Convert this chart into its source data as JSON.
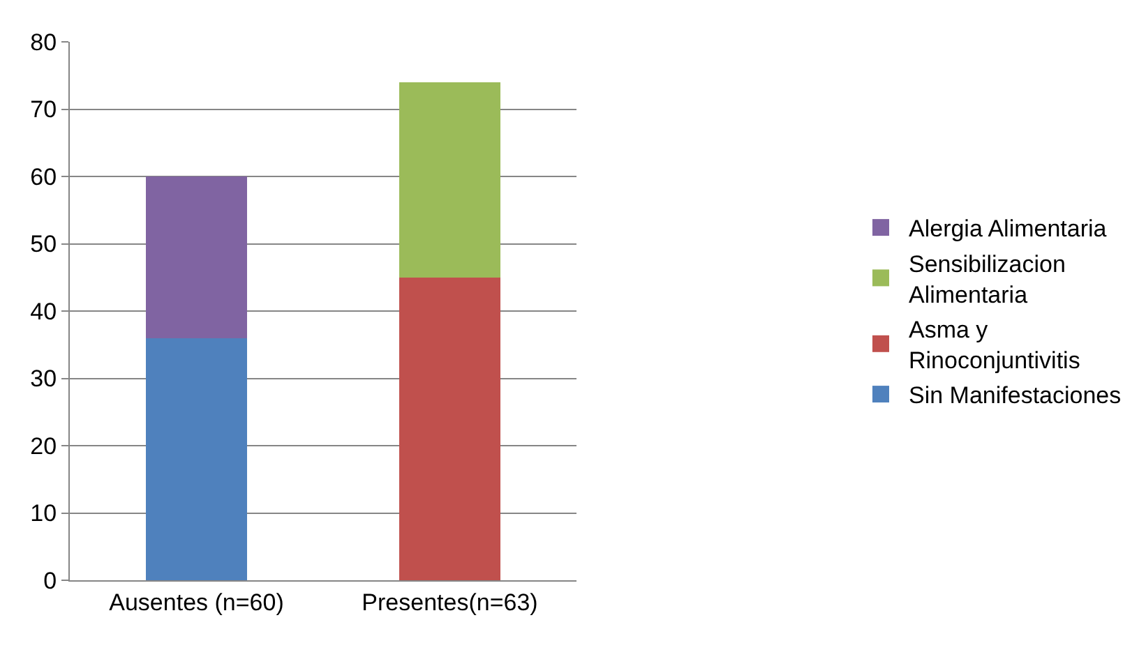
{
  "chart_data": {
    "type": "bar",
    "stacked": true,
    "categories": [
      "Ausentes (n=60)",
      "Presentes(n=63)"
    ],
    "series": [
      {
        "name": "Sin Manifestaciones",
        "color": "#4f81bd",
        "values": [
          36,
          null
        ]
      },
      {
        "name": "Asma y Rinoconjuntivitis",
        "color": "#c0504d",
        "values": [
          null,
          45
        ]
      },
      {
        "name": "Sensibilizacion Alimentaria",
        "color": "#9bbb59",
        "values": [
          null,
          29
        ]
      },
      {
        "name": "Alergia Alimentaria",
        "color": "#8064a2",
        "values": [
          24,
          null
        ]
      }
    ],
    "ylim": [
      0,
      80
    ],
    "yticks": [
      0,
      10,
      20,
      30,
      40,
      50,
      60,
      70,
      80
    ],
    "grid": "y",
    "legend": "right"
  }
}
